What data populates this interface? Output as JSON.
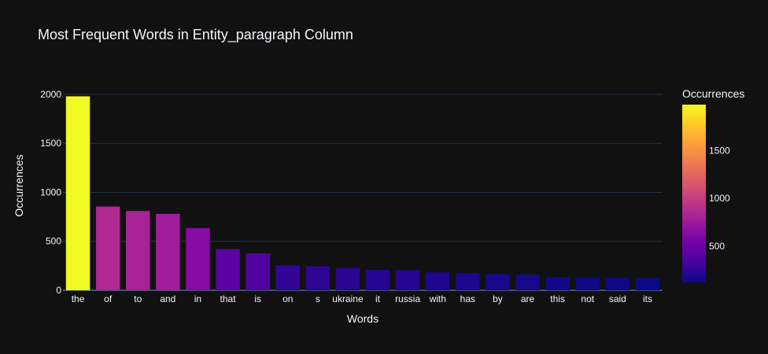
{
  "chart_data": {
    "type": "bar",
    "title": "Most Frequent Words in Entity_paragraph Column",
    "xlabel": "Words",
    "ylabel": "Occurrences",
    "categories": [
      "the",
      "of",
      "to",
      "and",
      "in",
      "that",
      "is",
      "on",
      "s",
      "ukraine",
      "it",
      "russia",
      "with",
      "has",
      "by",
      "are",
      "this",
      "not",
      "said",
      "its"
    ],
    "values": [
      1980,
      855,
      810,
      780,
      635,
      420,
      378,
      255,
      245,
      228,
      210,
      205,
      182,
      178,
      165,
      160,
      135,
      132,
      125,
      122
    ],
    "ylim": [
      0,
      2080
    ],
    "yticks": [
      0,
      500,
      1000,
      1500,
      2000
    ],
    "grid": true,
    "colorscale": "Plasma",
    "colorbar": {
      "title": "Occurrences",
      "range": [
        122,
        1980
      ],
      "ticks": [
        500,
        1000,
        1500
      ]
    },
    "colors": {
      "background": "#111111",
      "grid": "#283442",
      "text": "#f2f5fa"
    }
  }
}
